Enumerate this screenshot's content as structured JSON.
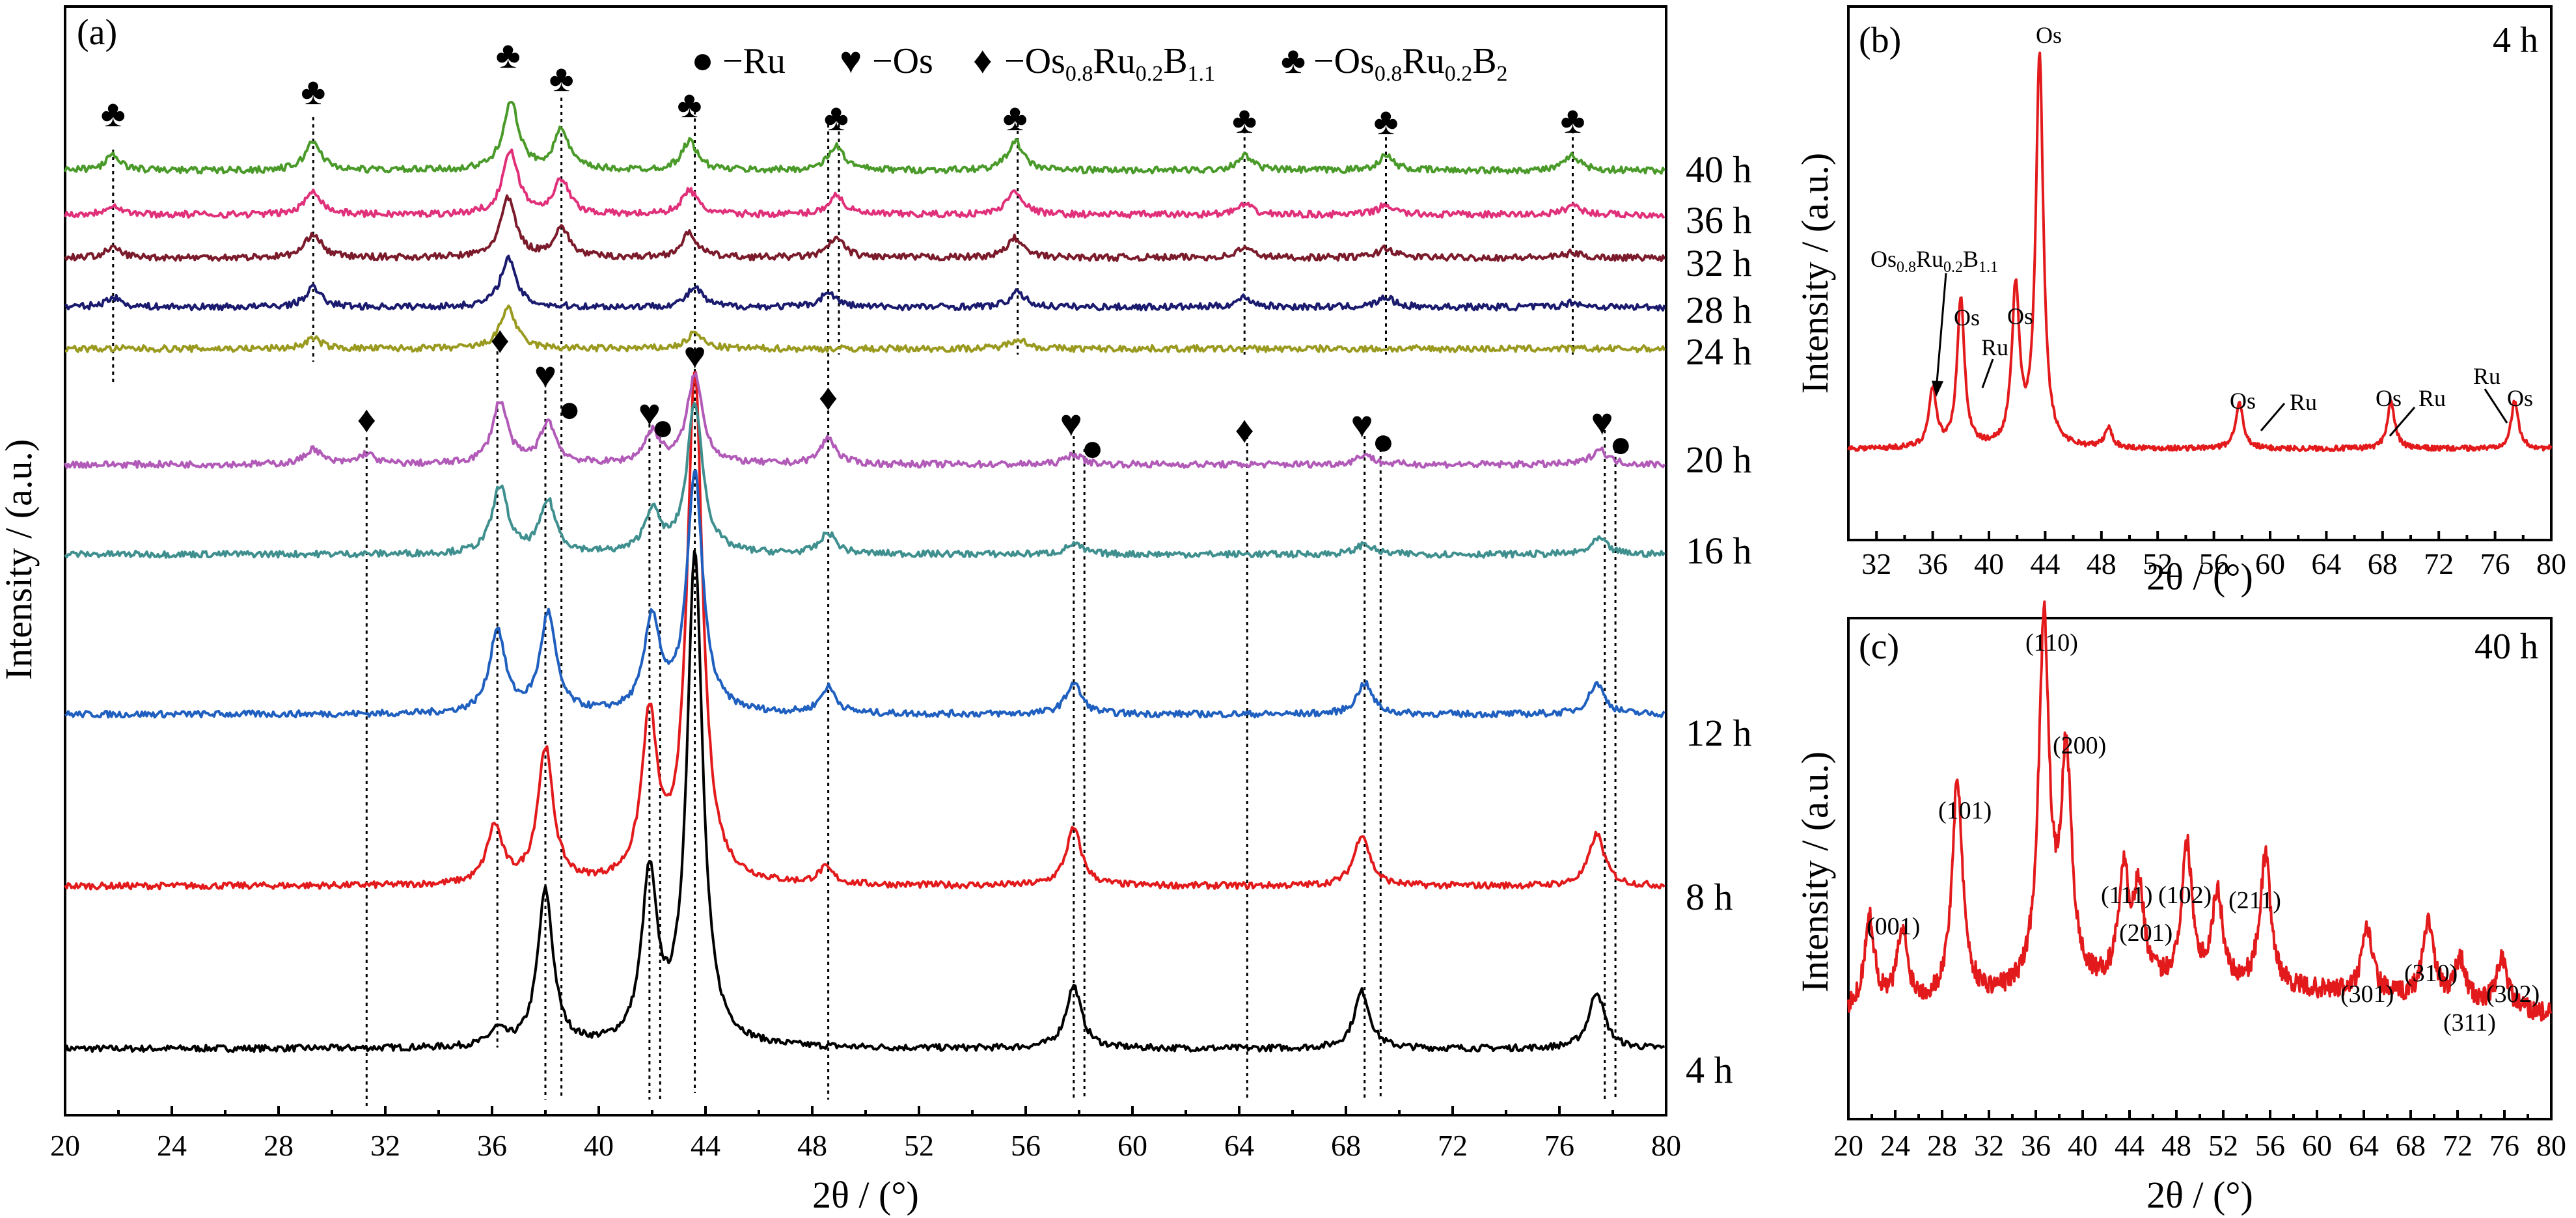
{
  "panels": {
    "a": {
      "label": "(a)",
      "xlabel": "2θ / (°)",
      "ylabel": "Intensity / (a.u.)",
      "xticks": [
        "20",
        "24",
        "28",
        "32",
        "36",
        "40",
        "44",
        "48",
        "52",
        "56",
        "60",
        "64",
        "68",
        "72",
        "76",
        "80"
      ],
      "legend": [
        {
          "symbol": "●",
          "text": "−Ru"
        },
        {
          "symbol": "♥",
          "text": "−Os"
        },
        {
          "symbol": "♦",
          "text": "−Os",
          "sub1": "0.8",
          "mid": "Ru",
          "sub2": "0.2",
          "mid2": "B",
          "sub3": "1.1"
        },
        {
          "symbol": "♣",
          "text": "−Os",
          "sub1": "0.8",
          "mid": "Ru",
          "sub2": "0.2",
          "mid2": "B",
          "sub3": "2"
        }
      ]
    },
    "b": {
      "label": "(b)",
      "time": "4 h",
      "xlabel": "2θ / (°)",
      "ylabel": "Intensity / (a.u.)",
      "xticks": [
        "32",
        "36",
        "40",
        "44",
        "48",
        "52",
        "56",
        "60",
        "64",
        "68",
        "72",
        "76",
        "80"
      ],
      "annotations": {
        "boride_main": "Os",
        "boride_sub1": "0.8",
        "boride_mid": "Ru",
        "boride_sub2": "0.2",
        "boride_mid2": "B",
        "boride_sub3": "1.1",
        "os": "Os",
        "ru": "Ru"
      }
    },
    "c": {
      "label": "(c)",
      "time": "40 h",
      "xlabel": "2θ / (°)",
      "ylabel": "Intensity / (a.u.)",
      "xticks": [
        "20",
        "24",
        "28",
        "32",
        "36",
        "40",
        "44",
        "48",
        "52",
        "56",
        "60",
        "64",
        "68",
        "72",
        "76",
        "80"
      ],
      "hkl": [
        "(001)",
        "(101)",
        "(110)",
        "(200)",
        "(111)",
        "(201)",
        "(102)",
        "(211)",
        "(301)",
        "(310)",
        "(311)",
        "(302)"
      ]
    }
  },
  "chart_data": [
    {
      "type": "line",
      "panel": "a",
      "xlabel": "2θ / (°)",
      "ylabel": "Intensity / (a.u.)",
      "xlim": [
        20,
        80
      ],
      "series": [
        {
          "name": "4 h",
          "color": "#000000",
          "peaks": [
            [
              36.2,
              0.3
            ],
            [
              38.0,
              3.0
            ],
            [
              41.9,
              3.2
            ],
            [
              43.6,
              9.5
            ],
            [
              57.8,
              1.2
            ],
            [
              68.6,
              1.1
            ],
            [
              77.4,
              1.1
            ]
          ]
        },
        {
          "name": "8 h",
          "color": "#e31a1c",
          "peaks": [
            [
              36.1,
              1.1
            ],
            [
              38.0,
              2.6
            ],
            [
              41.9,
              3.1
            ],
            [
              43.6,
              9.8
            ],
            [
              48.5,
              0.3
            ],
            [
              57.8,
              1.1
            ],
            [
              68.6,
              1.0
            ],
            [
              77.4,
              1.0
            ]
          ]
        },
        {
          "name": "12 h",
          "color": "#1f5fbf",
          "peaks": [
            [
              36.2,
              1.6
            ],
            [
              38.1,
              1.9
            ],
            [
              42.0,
              1.8
            ],
            [
              43.6,
              4.6
            ],
            [
              48.6,
              0.5
            ],
            [
              57.8,
              0.6
            ],
            [
              68.7,
              0.6
            ],
            [
              77.4,
              0.6
            ]
          ]
        },
        {
          "name": "16 h",
          "color": "#3f8f8f",
          "peaks": [
            [
              36.3,
              1.3
            ],
            [
              38.1,
              1.0
            ],
            [
              42.0,
              0.8
            ],
            [
              43.6,
              2.9
            ],
            [
              48.6,
              0.4
            ],
            [
              57.8,
              0.2
            ],
            [
              68.7,
              0.2
            ],
            [
              77.5,
              0.3
            ]
          ]
        },
        {
          "name": "20 h",
          "color": "#b15ab8",
          "peaks": [
            [
              29.3,
              0.3
            ],
            [
              31.3,
              0.2
            ],
            [
              36.3,
              1.2
            ],
            [
              38.1,
              0.8
            ],
            [
              42.0,
              0.6
            ],
            [
              43.6,
              1.7
            ],
            [
              48.6,
              0.5
            ],
            [
              57.8,
              0.2
            ],
            [
              68.7,
              0.2
            ],
            [
              77.5,
              0.3
            ]
          ]
        },
        {
          "name": "24 h",
          "color": "#9a9a20",
          "peaks": [
            [
              29.3,
              0.2
            ],
            [
              36.6,
              0.8
            ],
            [
              43.6,
              0.3
            ],
            [
              55.7,
              0.2
            ]
          ]
        },
        {
          "name": "28 h",
          "color": "#1a1a6e",
          "peaks": [
            [
              21.8,
              0.2
            ],
            [
              29.3,
              0.4
            ],
            [
              36.6,
              1.0
            ],
            [
              43.6,
              0.4
            ],
            [
              48.6,
              0.3
            ],
            [
              55.7,
              0.3
            ],
            [
              64.2,
              0.2
            ],
            [
              69.5,
              0.2
            ],
            [
              76.5,
              0.1
            ]
          ]
        },
        {
          "name": "32 h",
          "color": "#7a1a2a",
          "peaks": [
            [
              21.8,
              0.2
            ],
            [
              29.3,
              0.5
            ],
            [
              36.6,
              1.2
            ],
            [
              38.6,
              0.6
            ],
            [
              43.4,
              0.5
            ],
            [
              48.9,
              0.4
            ],
            [
              55.6,
              0.4
            ],
            [
              64.2,
              0.2
            ],
            [
              69.5,
              0.2
            ],
            [
              76.5,
              0.1
            ]
          ]
        },
        {
          "name": "36 h",
          "color": "#e0307a",
          "peaks": [
            [
              21.8,
              0.2
            ],
            [
              29.3,
              0.5
            ],
            [
              36.7,
              1.3
            ],
            [
              38.6,
              0.7
            ],
            [
              43.4,
              0.5
            ],
            [
              48.9,
              0.4
            ],
            [
              55.6,
              0.5
            ],
            [
              64.2,
              0.2
            ],
            [
              69.5,
              0.2
            ],
            [
              76.5,
              0.2
            ]
          ]
        },
        {
          "name": "40 h",
          "color": "#4a9a2a",
          "peaks": [
            [
              21.8,
              0.3
            ],
            [
              29.3,
              0.6
            ],
            [
              36.7,
              1.4
            ],
            [
              38.6,
              0.8
            ],
            [
              43.4,
              0.6
            ],
            [
              48.9,
              0.5
            ],
            [
              55.6,
              0.6
            ],
            [
              64.2,
              0.3
            ],
            [
              69.5,
              0.3
            ],
            [
              76.5,
              0.3
            ]
          ]
        }
      ]
    },
    {
      "type": "line",
      "panel": "b",
      "xlabel": "2θ / (°)",
      "ylabel": "Intensity / (a.u.)",
      "xlim": [
        30,
        80
      ],
      "series": [
        {
          "name": "4 h",
          "color": "#e31a1c",
          "peaks": [
            [
              36.0,
              0.15
            ],
            [
              38.0,
              0.38
            ],
            [
              41.9,
              0.4
            ],
            [
              43.6,
              1.0
            ],
            [
              48.5,
              0.05
            ],
            [
              57.8,
              0.12
            ],
            [
              68.6,
              0.12
            ],
            [
              77.4,
              0.12
            ]
          ]
        }
      ]
    },
    {
      "type": "line",
      "panel": "c",
      "xlabel": "2θ / (°)",
      "ylabel": "Intensity / (a.u.)",
      "xlim": [
        20,
        80
      ],
      "series": [
        {
          "name": "40 h",
          "color": "#e31a1c",
          "peaks": [
            [
              21.8,
              0.25
            ],
            [
              24.6,
              0.2
            ],
            [
              29.3,
              0.6
            ],
            [
              36.7,
              1.0
            ],
            [
              38.6,
              0.62
            ],
            [
              43.5,
              0.3
            ],
            [
              44.8,
              0.25
            ],
            [
              48.9,
              0.38
            ],
            [
              51.5,
              0.25
            ],
            [
              55.6,
              0.36
            ],
            [
              64.3,
              0.18
            ],
            [
              69.5,
              0.22
            ],
            [
              72.2,
              0.12
            ],
            [
              75.8,
              0.14
            ]
          ]
        }
      ]
    }
  ]
}
